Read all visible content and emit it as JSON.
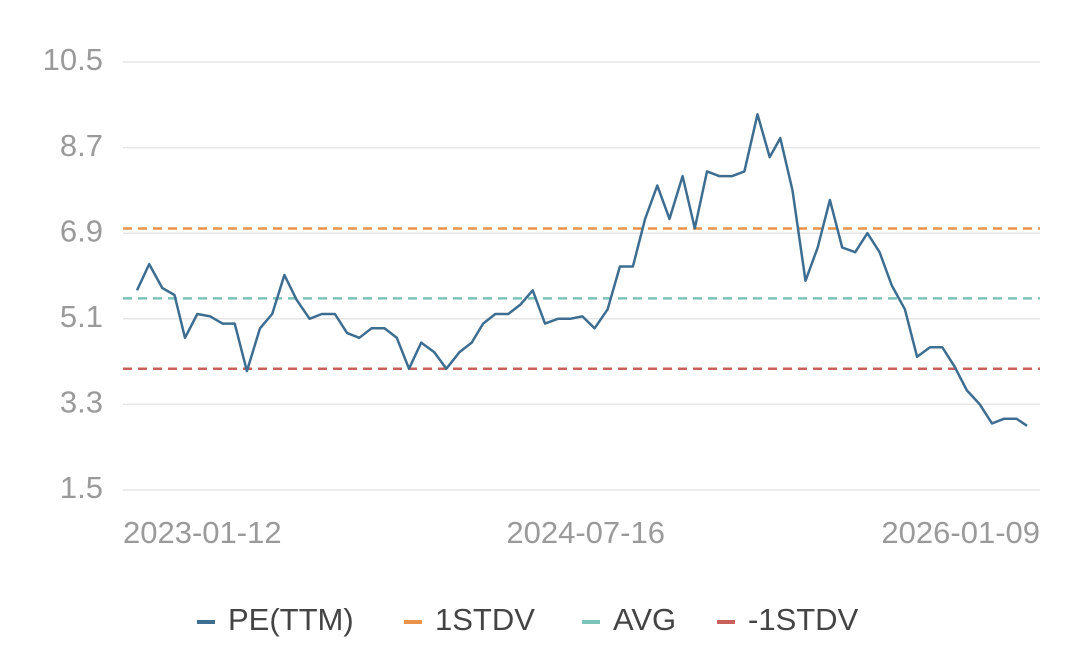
{
  "chart_data": {
    "type": "line",
    "x": [
      "2023-01-12",
      "2023-01-27",
      "2023-02-12",
      "2023-02-27",
      "2023-03-12",
      "2023-03-27",
      "2023-04-12",
      "2023-04-27",
      "2023-05-12",
      "2023-05-27",
      "2023-06-12",
      "2023-06-27",
      "2023-07-12",
      "2023-07-27",
      "2023-08-12",
      "2023-08-27",
      "2023-09-12",
      "2023-09-27",
      "2023-10-12",
      "2023-10-27",
      "2023-11-12",
      "2023-11-27",
      "2023-12-12",
      "2023-12-27",
      "2024-01-12",
      "2024-01-27",
      "2024-02-12",
      "2024-02-27",
      "2024-03-12",
      "2024-03-27",
      "2024-04-12",
      "2024-04-27",
      "2024-05-12",
      "2024-05-27",
      "2024-06-12",
      "2024-06-27",
      "2024-07-12",
      "2024-07-27",
      "2024-08-12",
      "2024-08-27",
      "2024-09-12",
      "2024-09-27",
      "2024-10-12",
      "2024-10-27",
      "2024-11-12",
      "2024-11-27",
      "2024-12-12",
      "2024-12-27",
      "2025-01-12",
      "2025-01-27",
      "2025-02-12",
      "2025-02-27",
      "2025-03-12",
      "2025-03-27",
      "2025-04-12",
      "2025-04-27",
      "2025-05-12",
      "2025-05-27",
      "2025-06-12",
      "2025-06-27",
      "2025-07-12",
      "2025-07-27",
      "2025-08-12",
      "2025-08-27",
      "2025-09-12",
      "2025-09-27",
      "2025-10-12",
      "2025-10-27",
      "2025-11-12",
      "2025-11-27",
      "2025-12-12",
      "2025-12-27",
      "2026-01-09"
    ],
    "series": [
      {
        "name": "PE(TTM)",
        "color": "#3d6e91",
        "values": [
          5.7,
          6.25,
          5.75,
          5.6,
          4.7,
          5.2,
          5.15,
          5.0,
          5.0,
          4.0,
          4.9,
          5.2,
          6.02,
          5.5,
          5.1,
          5.2,
          5.2,
          4.8,
          4.7,
          4.9,
          4.9,
          4.7,
          4.05,
          4.6,
          4.4,
          4.05,
          4.4,
          4.6,
          5.0,
          5.2,
          5.2,
          5.4,
          5.7,
          5.0,
          5.1,
          5.1,
          5.15,
          4.9,
          5.3,
          6.2,
          6.2,
          7.2,
          7.9,
          7.2,
          8.1,
          7.0,
          8.2,
          8.1,
          8.1,
          8.2,
          9.4,
          8.5,
          8.9,
          7.8,
          5.9,
          6.6,
          7.6,
          6.6,
          6.5,
          6.9,
          6.5,
          5.8,
          5.3,
          4.3,
          4.5,
          4.5,
          4.1,
          3.6,
          3.3,
          2.9,
          3.0,
          3.0,
          2.85
        ]
      }
    ],
    "reference_lines": [
      {
        "name": "1STDV",
        "value": 7.0,
        "color": "#e8924a"
      },
      {
        "name": "AVG",
        "value": 5.53,
        "color": "#7cc4b8"
      },
      {
        "name": "-1STDV",
        "value": 4.05,
        "color": "#c9605a"
      }
    ],
    "xlim": [
      "2023-01-12",
      "2026-01-09"
    ],
    "xticks": [
      "2023-01-12",
      "2024-07-16",
      "2026-01-09"
    ],
    "ylim": [
      1.5,
      10.5
    ],
    "yticks": [
      1.5,
      3.3,
      5.1,
      6.9,
      8.7,
      10.5
    ],
    "grid": true,
    "legend": "bottom"
  }
}
